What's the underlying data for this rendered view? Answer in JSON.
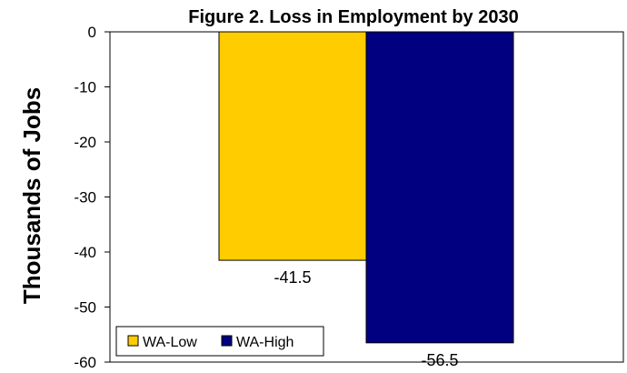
{
  "chart_data": {
    "type": "bar",
    "title": "Figure 2. Loss in Employment by 2030",
    "xlabel": "",
    "ylabel": "Thousands of Jobs",
    "categories": [
      ""
    ],
    "series": [
      {
        "name": "WA-Low",
        "values": [
          -41.5
        ],
        "color": "#FFCC00"
      },
      {
        "name": "WA-High",
        "values": [
          -56.5
        ],
        "color": "#000080"
      }
    ],
    "data_labels": [
      "-41.5",
      "-56.5"
    ],
    "ylim": [
      -60,
      0
    ],
    "yticks": [
      0,
      -10,
      -20,
      -30,
      -40,
      -50,
      -60
    ],
    "ytick_labels": [
      "0",
      "-10",
      "-20",
      "-30",
      "-40",
      "-50",
      "-60"
    ],
    "grid": false,
    "legend_position": "bottom-left"
  }
}
